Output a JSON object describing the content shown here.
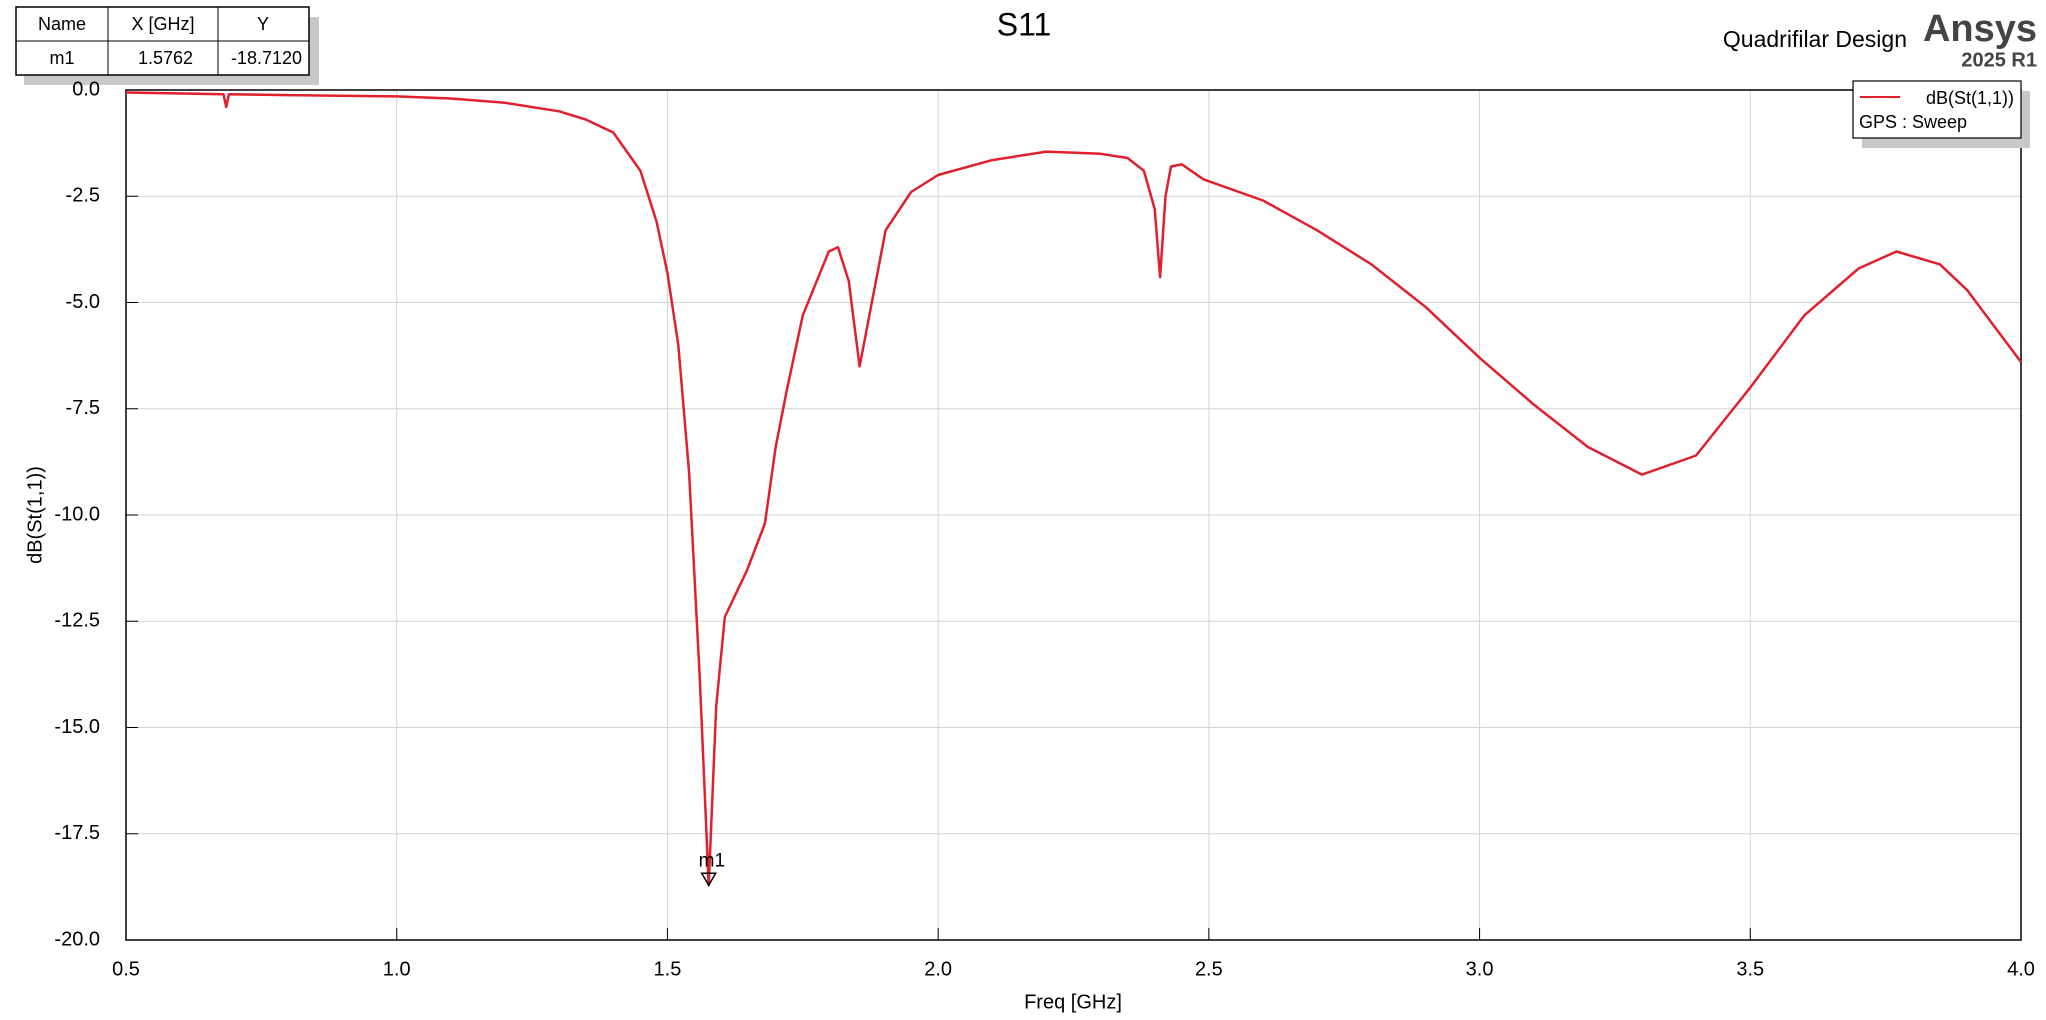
{
  "chart_data": {
    "type": "line",
    "title": "S11",
    "header": {
      "design": "Quadrifilar Design",
      "brand": "Ansys",
      "version": "2025 R1"
    },
    "xlabel": "Freq [GHz]",
    "ylabel": "dB(St(1,1))",
    "xlim": [
      0.5,
      4.0
    ],
    "ylim": [
      -20,
      0
    ],
    "xticks": [
      0.5,
      {
        "value": 1,
        "label": "1.0"
      },
      1.5,
      {
        "value": 2,
        "label": "2.0"
      },
      2.5,
      {
        "value": 3,
        "label": "3.0"
      },
      3.5,
      {
        "value": 4,
        "label": "4.0"
      }
    ],
    "yticks": [
      {
        "value": 0,
        "label": "0.0"
      },
      -2.5,
      {
        "value": -5,
        "label": "-5.0"
      },
      -7.5,
      {
        "value": -10,
        "label": "-10.0"
      },
      -12.5,
      {
        "value": -15,
        "label": "-15.0"
      },
      -17.5,
      {
        "value": -20,
        "label": "-20.0"
      }
    ],
    "grid": true,
    "legend_subtitle": "GPS : Sweep",
    "x": [
      0.5,
      0.68,
      0.685,
      0.69,
      0.8,
      1.0,
      1.1,
      1.2,
      1.3,
      1.35,
      1.4,
      1.45,
      1.48,
      1.5,
      1.52,
      1.54,
      1.56,
      1.5762,
      1.59,
      1.606,
      1.647,
      1.68,
      1.7,
      1.72,
      1.75,
      1.798,
      1.815,
      1.835,
      1.855,
      1.87,
      1.903,
      1.95,
      2.0,
      2.1,
      2.2,
      2.3,
      2.35,
      2.38,
      2.4,
      2.41,
      2.42,
      2.43,
      2.45,
      2.49,
      2.6,
      2.7,
      2.8,
      2.9,
      3.0,
      3.1,
      3.2,
      3.3,
      3.4,
      3.5,
      3.6,
      3.7,
      3.77,
      3.85,
      3.9,
      4.0
    ],
    "series": [
      {
        "name": "dB(St(1,1))",
        "color": "#e0202c",
        "values": [
          -0.06,
          -0.1,
          -0.4,
          -0.1,
          -0.12,
          -0.15,
          -0.2,
          -0.3,
          -0.5,
          -0.7,
          -1.0,
          -1.9,
          -3.1,
          -4.3,
          -6.0,
          -9.0,
          -13.9,
          -18.71,
          -14.5,
          -12.4,
          -11.3,
          -10.2,
          -8.4,
          -7.1,
          -5.3,
          -3.8,
          -3.7,
          -4.5,
          -6.5,
          -5.5,
          -3.3,
          -2.4,
          -2.0,
          -1.65,
          -1.45,
          -1.5,
          -1.6,
          -1.9,
          -2.8,
          -4.4,
          -2.5,
          -1.8,
          -1.75,
          -2.1,
          -2.6,
          -3.3,
          -4.1,
          -5.1,
          -6.3,
          -7.4,
          -8.4,
          -9.05,
          -8.6,
          -7.0,
          -5.3,
          -4.2,
          -3.8,
          -4.1,
          -4.7,
          -6.4
        ]
      }
    ],
    "marker_table": {
      "headers": [
        "Name",
        "X [GHz]",
        "Y"
      ]
    },
    "markers": [
      {
        "name": "m1",
        "x": 1.5762,
        "y": -18.712,
        "y_label": "-18.7120"
      }
    ]
  }
}
